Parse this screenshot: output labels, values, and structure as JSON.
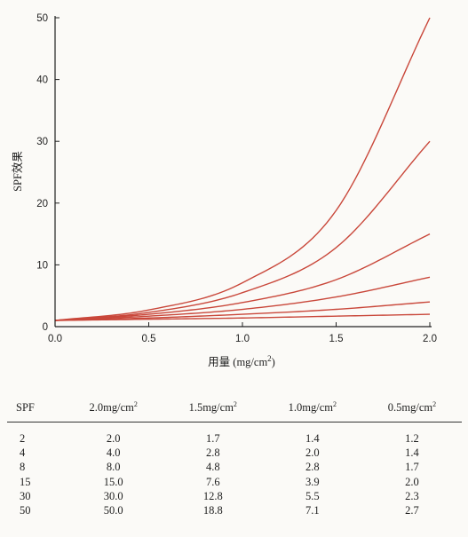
{
  "chart_data": {
    "type": "line",
    "xlabel": "用量 (mg/cm",
    "xlabel_sup": "2",
    "xlabel_close": ")",
    "ylabel": "SPF效果",
    "xlim": [
      0,
      2.0
    ],
    "ylim": [
      0,
      50
    ],
    "x_ticks": [
      "0.0",
      "0.5",
      "1.0",
      "1.5",
      "2.0"
    ],
    "y_ticks": [
      "0",
      "10",
      "20",
      "30",
      "40",
      "50"
    ],
    "line_color": "#c9473a",
    "x": [
      0.0,
      0.5,
      1.0,
      1.5,
      2.0
    ],
    "series": [
      {
        "values": [
          1.0,
          1.2,
          1.4,
          1.7,
          2.0
        ]
      },
      {
        "values": [
          1.0,
          1.4,
          2.0,
          2.8,
          4.0
        ]
      },
      {
        "values": [
          1.0,
          1.7,
          2.8,
          4.8,
          8.0
        ]
      },
      {
        "values": [
          1.0,
          2.0,
          3.9,
          7.6,
          15.0
        ]
      },
      {
        "values": [
          1.0,
          2.3,
          5.5,
          12.8,
          30.0
        ]
      },
      {
        "values": [
          1.0,
          2.7,
          7.1,
          18.8,
          50.0
        ]
      }
    ]
  },
  "table": {
    "headers": [
      {
        "text": "SPF",
        "sup": ""
      },
      {
        "text": "2.0mg/cm",
        "sup": "2"
      },
      {
        "text": "1.5mg/cm",
        "sup": "2"
      },
      {
        "text": "1.0mg/cm",
        "sup": "2"
      },
      {
        "text": "0.5mg/cm",
        "sup": "2"
      }
    ],
    "rows": [
      [
        "2",
        "2.0",
        "1.7",
        "1.4",
        "1.2"
      ],
      [
        "4",
        "4.0",
        "2.8",
        "2.0",
        "1.4"
      ],
      [
        "8",
        "8.0",
        "4.8",
        "2.8",
        "1.7"
      ],
      [
        "15",
        "15.0",
        "7.6",
        "3.9",
        "2.0"
      ],
      [
        "30",
        "30.0",
        "12.8",
        "5.5",
        "2.3"
      ],
      [
        "50",
        "50.0",
        "18.8",
        "7.1",
        "2.7"
      ]
    ]
  }
}
